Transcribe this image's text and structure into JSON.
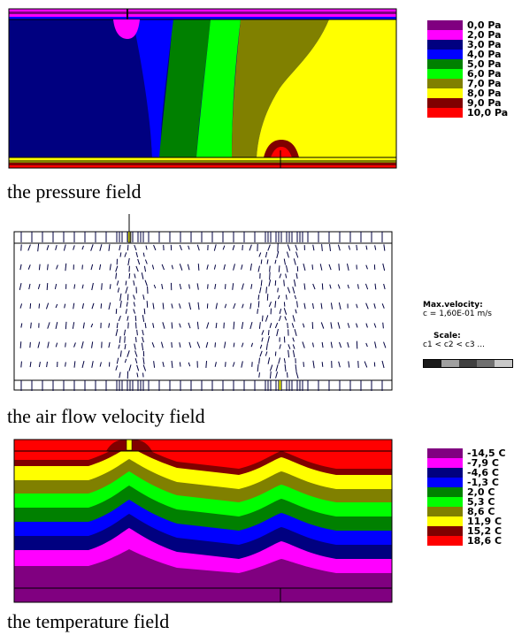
{
  "pressure": {
    "caption": "the pressure field",
    "legend": [
      {
        "label": "0,0 Pa",
        "color": "#800080"
      },
      {
        "label": "2,0 Pa",
        "color": "#ff00ff"
      },
      {
        "label": "3,0 Pa",
        "color": "#000080"
      },
      {
        "label": "4,0 Pa",
        "color": "#0000ff"
      },
      {
        "label": "5,0 Pa",
        "color": "#008000"
      },
      {
        "label": "6,0 Pa",
        "color": "#00ff00"
      },
      {
        "label": "7,0 Pa",
        "color": "#808000"
      },
      {
        "label": "8,0 Pa",
        "color": "#ffff00"
      },
      {
        "label": "9,0 Pa",
        "color": "#800000"
      },
      {
        "label": "10,0 Pa",
        "color": "#ff0000"
      }
    ]
  },
  "velocity": {
    "caption": "the air flow velocity field",
    "max_label": "Max.velocity:",
    "max_value": "c = 1,60E-01 m/s",
    "scale_label": "Scale:",
    "scale_order": "c1 < c2 < c3 ...",
    "scale_colors": [
      "#1a1a1a",
      "#a0a0a0",
      "#404040",
      "#707070",
      "#c8c8c8"
    ]
  },
  "temperature": {
    "caption": "the temperature field",
    "legend": [
      {
        "label": "-14,5 C",
        "color": "#800080"
      },
      {
        "label": "-7,9 C",
        "color": "#ff00ff"
      },
      {
        "label": "-4,6 C",
        "color": "#000080"
      },
      {
        "label": "-1,3 C",
        "color": "#0000ff"
      },
      {
        "label": "2,0 C",
        "color": "#008000"
      },
      {
        "label": "5,3 C",
        "color": "#00ff00"
      },
      {
        "label": "8,6 C",
        "color": "#808000"
      },
      {
        "label": "11,9 C",
        "color": "#ffff00"
      },
      {
        "label": "15,2 C",
        "color": "#800000"
      },
      {
        "label": "18,6 C",
        "color": "#ff0000"
      }
    ]
  }
}
